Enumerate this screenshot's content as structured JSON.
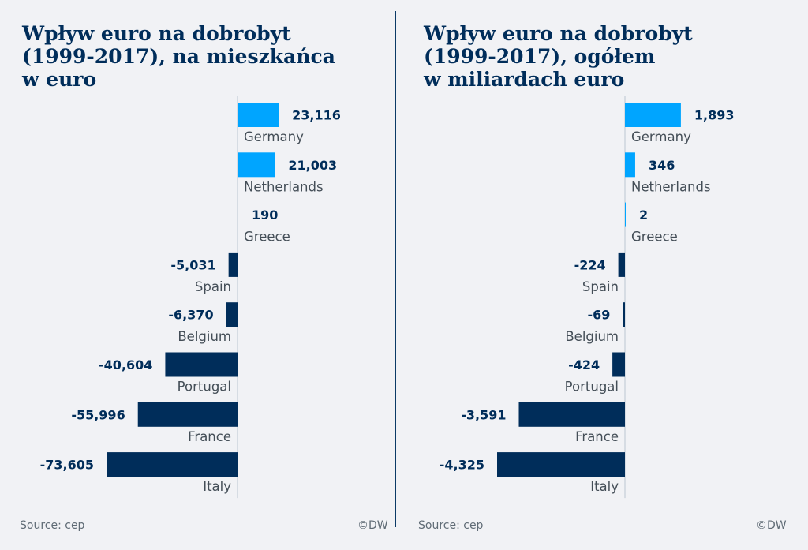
{
  "page": {
    "background_color": "#f1f2f5",
    "divider_color": "#0b3a66"
  },
  "colors": {
    "positive": "#00a5ff",
    "negative": "#002d5a",
    "title": "#002d5a",
    "axis": "#cdd5dd"
  },
  "chart_data": [
    {
      "type": "bar",
      "orientation": "horizontal",
      "title_lines": [
        "Wpływ euro na dobrobyt",
        "(1999-2017), na mieszkańca",
        "w euro"
      ],
      "title": "Wpływ euro na dobrobyt (1999-2017), na mieszkańca w euro",
      "xlabel": "",
      "ylabel": "",
      "grid": false,
      "categories": [
        "Germany",
        "Netherlands",
        "Greece",
        "Spain",
        "Belgium",
        "Portugal",
        "France",
        "Italy"
      ],
      "values": [
        23116,
        21003,
        190,
        -5031,
        -6370,
        -40604,
        -55996,
        -73605
      ],
      "value_labels": [
        "23,116",
        "21,003",
        "190",
        "-5,031",
        "-6,370",
        "-40,604",
        "-55,996",
        "-73,605"
      ],
      "xlim": [
        -73605,
        23116
      ],
      "source": "Source: cep",
      "credit": "©DW"
    },
    {
      "type": "bar",
      "orientation": "horizontal",
      "title_lines": [
        "Wpływ euro na dobrobyt",
        "(1999-2017), ogółem",
        "w miliardach euro"
      ],
      "title": "Wpływ euro na dobrobyt (1999-2017), ogółem w miliardach euro",
      "xlabel": "",
      "ylabel": "",
      "grid": false,
      "categories": [
        "Germany",
        "Netherlands",
        "Greece",
        "Spain",
        "Belgium",
        "Portugal",
        "France",
        "Italy"
      ],
      "values": [
        1893,
        346,
        2,
        -224,
        -69,
        -424,
        -3591,
        -4325
      ],
      "value_labels": [
        "1,893",
        "346",
        "2",
        "-224",
        "-69",
        "-424",
        "-3,591",
        "-4,325"
      ],
      "xlim": [
        -4325,
        1893
      ],
      "source": "Source: cep",
      "credit": "©DW"
    }
  ]
}
